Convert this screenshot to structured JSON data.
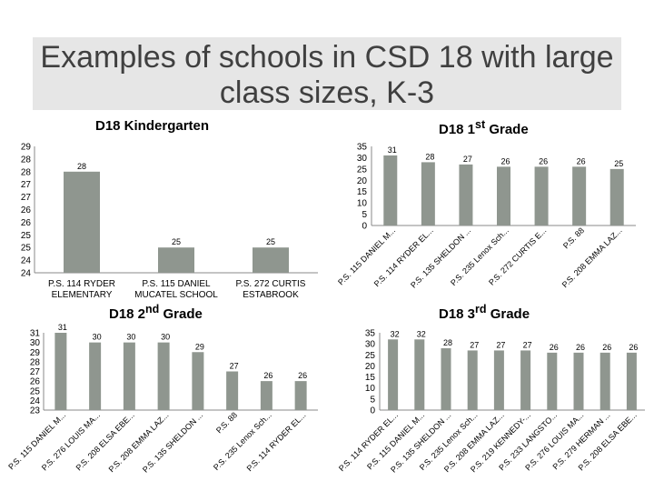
{
  "title": "Examples of schools in CSD 18 with large class sizes, K-3",
  "colors": {
    "bar": "#8f968f",
    "axis": "#888888",
    "text": "#000000",
    "title_bg": "#e6e6e6"
  },
  "chart_data": [
    {
      "id": "k",
      "type": "bar",
      "title": "D18 Kindergarten",
      "categories": [
        "P.S. 114 RYDER ELEMENTARY",
        "P.S. 115 DANIEL MUCATEL SCHOOL",
        "P.S. 272 CURTIS ESTABROOK"
      ],
      "values": [
        28,
        25,
        25
      ],
      "y_ticks": [
        "29",
        "28",
        "28",
        "27",
        "27",
        "26",
        "26",
        "25",
        "25",
        "24",
        "24"
      ],
      "ylim": [
        24,
        29
      ],
      "label_style": "wrapped"
    },
    {
      "id": "g1",
      "type": "bar",
      "title_main": "D18 1",
      "title_sup": "st",
      "title_tail": " Grade",
      "categories": [
        "P.S. 115 DANIEL M...",
        "P.S. 114 RYDER EL...",
        "P.S. 135 SHELDON ...",
        "P.S. 235 Lenox Sch...",
        "P.S. 272 CURTIS E...",
        "P.S. 88",
        "P.S. 208 EMMA LAZ..."
      ],
      "values": [
        31,
        28,
        27,
        26,
        26,
        26,
        25
      ],
      "y_ticks": [
        "35",
        "30",
        "25",
        "20",
        "15",
        "10",
        "5",
        "0"
      ],
      "ylim": [
        0,
        35
      ],
      "label_style": "rotated"
    },
    {
      "id": "g2",
      "type": "bar",
      "title_main": "D18 2",
      "title_sup": "nd",
      "title_tail": " Grade",
      "categories": [
        "P.S. 115 DANIEL M...",
        "P.S. 276 LOUIS MA...",
        "P.S. 208 ELSA EBE...",
        "P.S. 208 EMMA LAZ...",
        "P.S. 135 SHELDON ...",
        "P.S. 88",
        "P.S. 235 Lenox Sch...",
        "P.S. 114 RYDER EL..."
      ],
      "values": [
        31,
        30,
        30,
        30,
        29,
        27,
        26,
        26
      ],
      "y_ticks": [
        "31",
        "30",
        "29",
        "28",
        "27",
        "26",
        "25",
        "24",
        "23"
      ],
      "ylim": [
        23,
        31
      ],
      "label_style": "rotated"
    },
    {
      "id": "g3",
      "type": "bar",
      "title_main": "D18 3",
      "title_sup": "rd",
      "title_tail": " Grade",
      "categories": [
        "P.S. 114 RYDER EL...",
        "P.S. 115 DANIEL M...",
        "P.S. 135 SHELDON ...",
        "P.S. 235 Lenox Sch...",
        "P.S. 208 EMMA LAZ...",
        "P.S. 219 KENNEDY-...",
        "P.S. 233 LANGSTO...",
        "P.S. 276 LOUIS MA...",
        "P.S. 279 HERMAN ...",
        "P.S. 208 ELSA EBE..."
      ],
      "values": [
        32,
        32,
        28,
        27,
        27,
        27,
        26,
        26,
        26,
        26
      ],
      "y_ticks": [
        "35",
        "30",
        "25",
        "20",
        "15",
        "10",
        "5",
        "0"
      ],
      "ylim": [
        0,
        35
      ],
      "label_style": "rotated"
    }
  ]
}
